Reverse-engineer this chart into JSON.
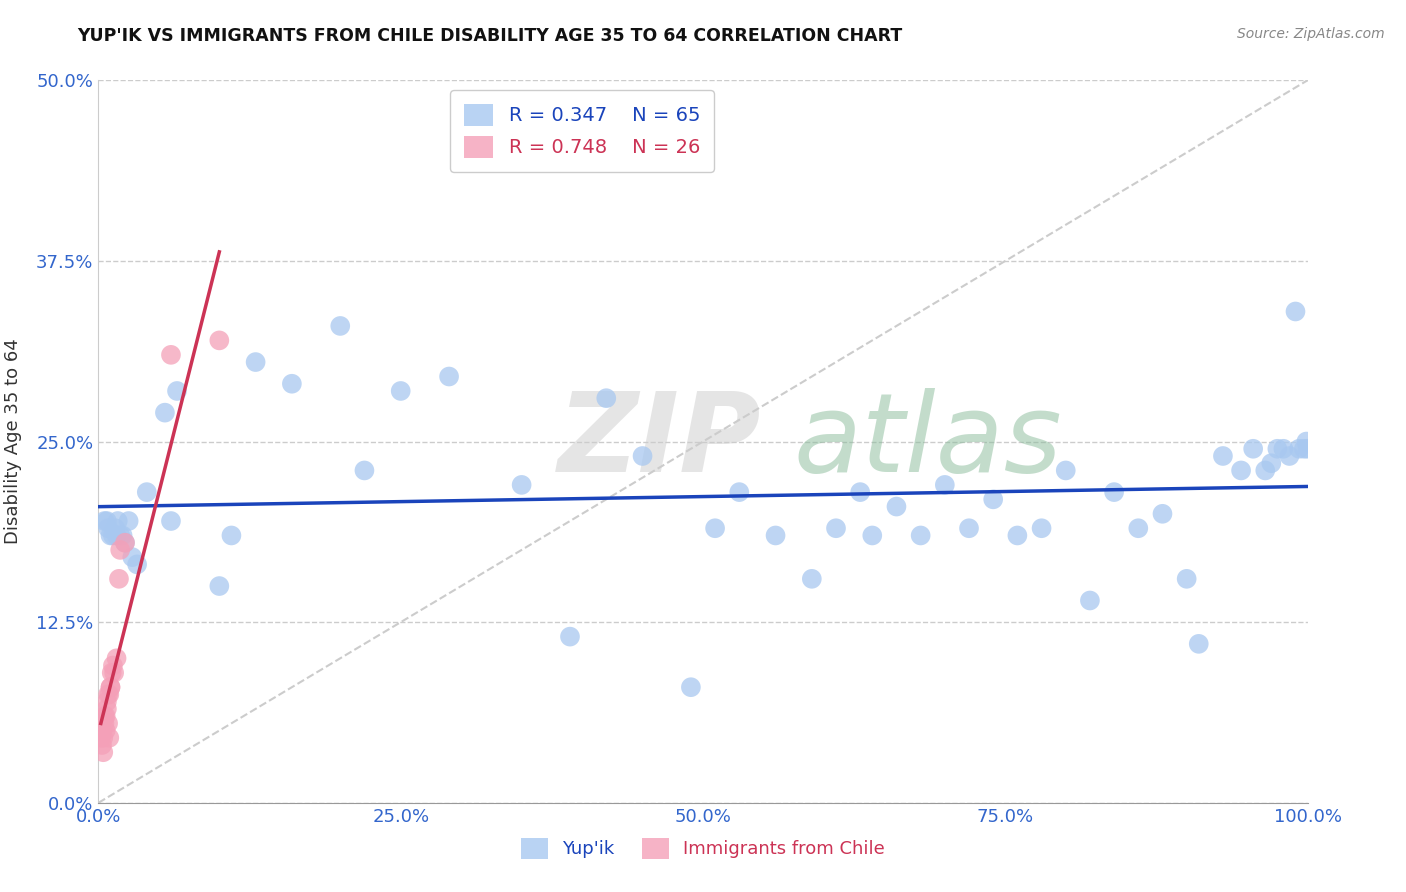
{
  "title": "YUP'IK VS IMMIGRANTS FROM CHILE DISABILITY AGE 35 TO 64 CORRELATION CHART",
  "source": "Source: ZipAtlas.com",
  "xlabel_ticks": [
    "0.0%",
    "25.0%",
    "50.0%",
    "75.0%",
    "100.0%"
  ],
  "xlabel_tick_vals": [
    0.0,
    0.25,
    0.5,
    0.75,
    1.0
  ],
  "ylabel_ticks": [
    "0.0%",
    "12.5%",
    "25.0%",
    "37.5%",
    "50.0%"
  ],
  "ylabel_tick_vals": [
    0.0,
    0.125,
    0.25,
    0.375,
    0.5
  ],
  "ylabel": "Disability Age 35 to 64",
  "R_blue": 0.347,
  "N_blue": 65,
  "R_pink": 0.748,
  "N_pink": 26,
  "blue_color": "#A8C8F0",
  "pink_color": "#F4A0B8",
  "blue_line_color": "#1A44BB",
  "pink_line_color": "#CC3355",
  "trendline_dash_color": "#CCCCCC",
  "blue_x": [
    0.005,
    0.007,
    0.008,
    0.01,
    0.012,
    0.014,
    0.015,
    0.016,
    0.018,
    0.02,
    0.022,
    0.025,
    0.028,
    0.032,
    0.04,
    0.055,
    0.06,
    0.065,
    0.1,
    0.11,
    0.13,
    0.16,
    0.2,
    0.22,
    0.25,
    0.29,
    0.35,
    0.39,
    0.42,
    0.45,
    0.49,
    0.51,
    0.53,
    0.56,
    0.59,
    0.61,
    0.63,
    0.64,
    0.66,
    0.68,
    0.7,
    0.72,
    0.74,
    0.76,
    0.78,
    0.8,
    0.82,
    0.84,
    0.86,
    0.88,
    0.9,
    0.91,
    0.93,
    0.945,
    0.955,
    0.965,
    0.97,
    0.975,
    0.98,
    0.985,
    0.99,
    0.993,
    0.997,
    0.999,
    1.0
  ],
  "blue_y": [
    0.195,
    0.195,
    0.19,
    0.185,
    0.185,
    0.19,
    0.185,
    0.195,
    0.185,
    0.185,
    0.18,
    0.195,
    0.17,
    0.165,
    0.215,
    0.27,
    0.195,
    0.285,
    0.15,
    0.185,
    0.305,
    0.29,
    0.33,
    0.23,
    0.285,
    0.295,
    0.22,
    0.115,
    0.28,
    0.24,
    0.08,
    0.19,
    0.215,
    0.185,
    0.155,
    0.19,
    0.215,
    0.185,
    0.205,
    0.185,
    0.22,
    0.19,
    0.21,
    0.185,
    0.19,
    0.23,
    0.14,
    0.215,
    0.19,
    0.2,
    0.155,
    0.11,
    0.24,
    0.23,
    0.245,
    0.23,
    0.235,
    0.245,
    0.245,
    0.24,
    0.34,
    0.245,
    0.245,
    0.25,
    0.245
  ],
  "pink_x": [
    0.002,
    0.003,
    0.003,
    0.004,
    0.004,
    0.005,
    0.005,
    0.006,
    0.006,
    0.007,
    0.007,
    0.008,
    0.008,
    0.009,
    0.009,
    0.01,
    0.01,
    0.011,
    0.012,
    0.013,
    0.015,
    0.017,
    0.018,
    0.022,
    0.06,
    0.1
  ],
  "pink_y": [
    0.045,
    0.05,
    0.04,
    0.045,
    0.035,
    0.055,
    0.06,
    0.06,
    0.05,
    0.065,
    0.07,
    0.075,
    0.055,
    0.075,
    0.045,
    0.08,
    0.08,
    0.09,
    0.095,
    0.09,
    0.1,
    0.155,
    0.175,
    0.18,
    0.31,
    0.32
  ],
  "xlim": [
    0.0,
    1.0
  ],
  "ylim": [
    0.0,
    0.5
  ],
  "figsize": [
    14.06,
    8.92
  ],
  "dpi": 100
}
